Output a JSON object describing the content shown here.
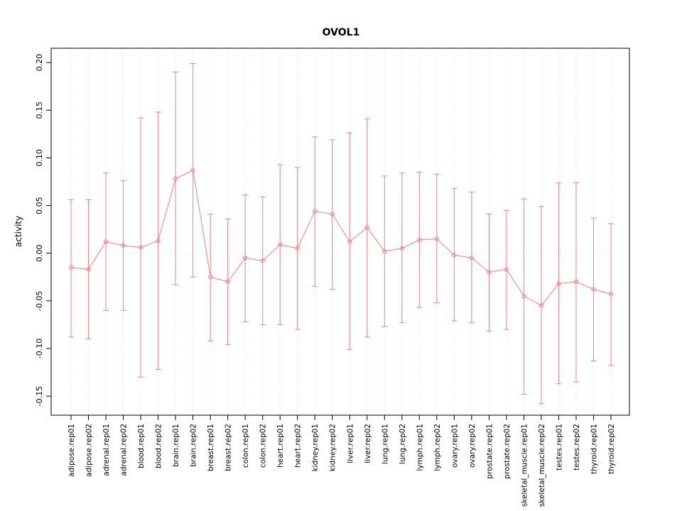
{
  "chart_data": {
    "type": "line",
    "title": "OVOL1",
    "ylabel": "activity",
    "xlabel": "",
    "ylim": [
      -0.17,
      0.215
    ],
    "yticks": [
      -0.15,
      -0.1,
      -0.05,
      0.0,
      0.05,
      0.1,
      0.15,
      0.2
    ],
    "grid": true,
    "legend": "none",
    "reference_line_y": 0,
    "point_style": "open-circle",
    "error_bars": true,
    "colors": {
      "series": "#F08080",
      "grid": "#DCDCDC",
      "axis": "#000000",
      "reference_line": "#DCDCDC",
      "background": "#FFFFFF"
    },
    "categories": [
      "adipose.rep01",
      "adipose.rep02",
      "adrenal.rep01",
      "adrenal.rep02",
      "blood.rep01",
      "blood.rep02",
      "brain.rep01",
      "brain.rep02",
      "breast.rep01",
      "breast.rep02",
      "colon.rep01",
      "colon.rep02",
      "heart.rep01",
      "heart.rep02",
      "kidney.rep01",
      "kidney.rep02",
      "liver.rep01",
      "liver.rep02",
      "lung.rep01",
      "lung.rep02",
      "lymph.rep01",
      "lymph.rep02",
      "ovary.rep01",
      "ovary.rep02",
      "prostate.rep01",
      "prostate.rep02",
      "skeletal_muscle.rep01",
      "skeletal_muscle.rep02",
      "testes.rep01",
      "testes.rep02",
      "thyroid.rep01",
      "thyroid.rep02"
    ],
    "series": [
      {
        "name": "activity",
        "values": [
          -0.015,
          -0.017,
          0.012,
          0.008,
          0.006,
          0.013,
          0.078,
          0.087,
          -0.025,
          -0.03,
          -0.005,
          -0.008,
          0.009,
          0.005,
          0.044,
          0.041,
          0.012,
          0.027,
          0.002,
          0.005,
          0.014,
          0.015,
          -0.002,
          -0.005,
          -0.02,
          -0.017,
          -0.045,
          -0.055,
          -0.032,
          -0.03,
          -0.038,
          -0.043
        ],
        "upper": [
          0.056,
          0.056,
          0.084,
          0.076,
          0.142,
          0.148,
          0.19,
          0.199,
          0.041,
          0.036,
          0.061,
          0.059,
          0.093,
          0.09,
          0.122,
          0.119,
          0.126,
          0.141,
          0.081,
          0.084,
          0.085,
          0.083,
          0.068,
          0.064,
          0.041,
          0.045,
          0.057,
          0.049,
          0.074,
          0.074,
          0.037,
          0.031
        ],
        "lower": [
          -0.088,
          -0.09,
          -0.06,
          -0.06,
          -0.13,
          -0.122,
          -0.033,
          -0.025,
          -0.092,
          -0.096,
          -0.072,
          -0.075,
          -0.075,
          -0.08,
          -0.035,
          -0.038,
          -0.101,
          -0.088,
          -0.077,
          -0.073,
          -0.057,
          -0.052,
          -0.071,
          -0.073,
          -0.082,
          -0.08,
          -0.148,
          -0.158,
          -0.137,
          -0.135,
          -0.113,
          -0.118
        ]
      }
    ]
  }
}
